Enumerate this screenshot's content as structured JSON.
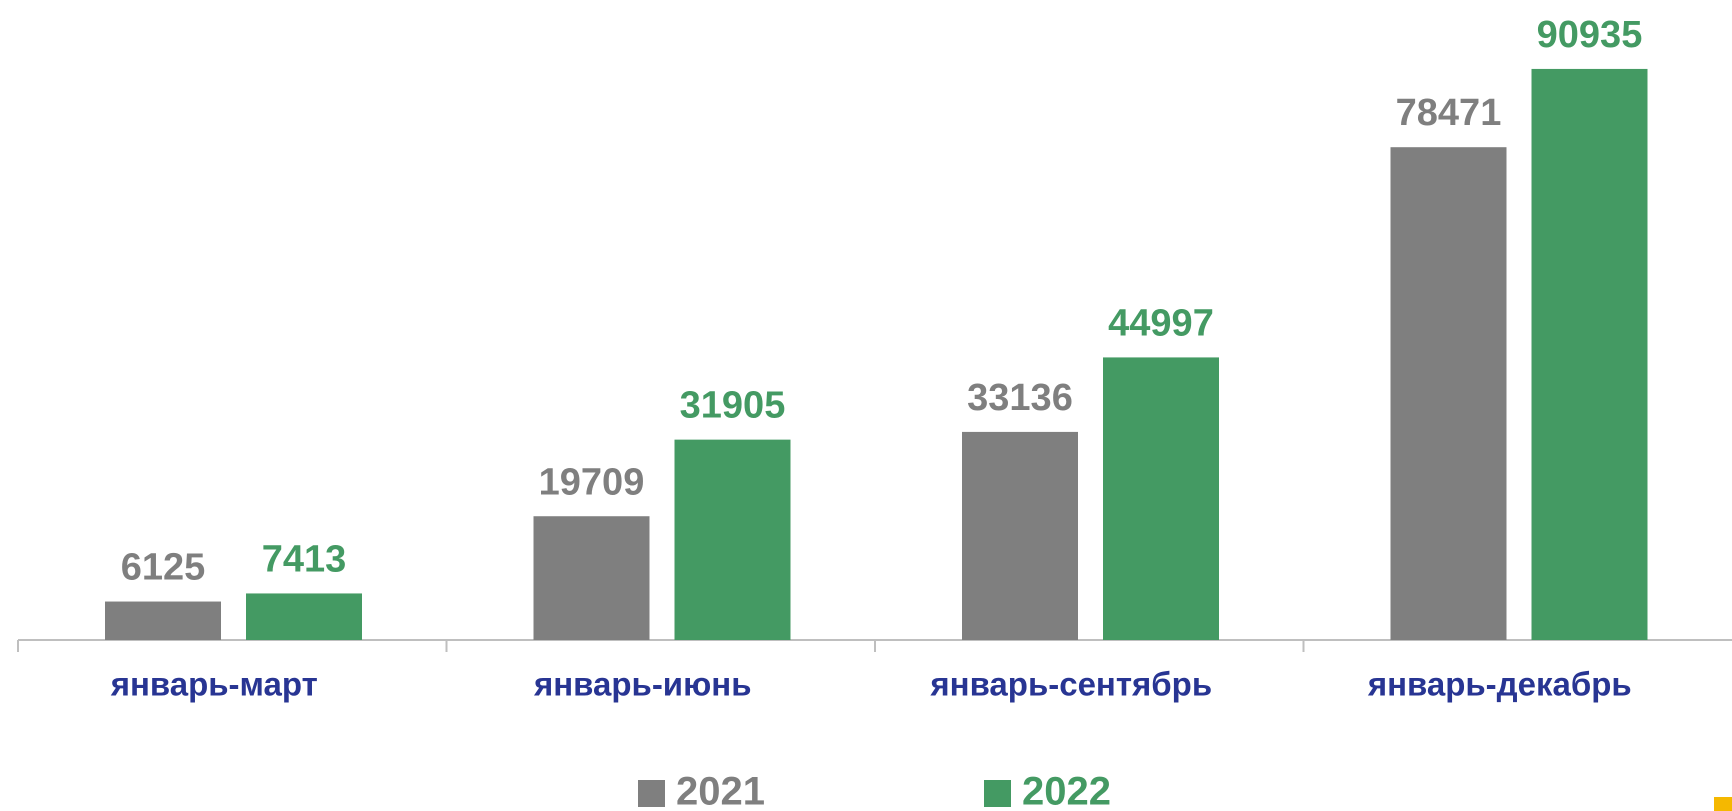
{
  "chart_data": {
    "type": "bar",
    "categories": [
      "январь-март",
      "январь-июнь",
      "январь-сентябрь",
      "январь-декабрь"
    ],
    "series": [
      {
        "name": "2021",
        "color": "#7f7f7f",
        "values": [
          6125,
          19709,
          33136,
          78471
        ]
      },
      {
        "name": "2022",
        "color": "#449a63",
        "values": [
          7413,
          31905,
          44997,
          90935
        ]
      }
    ],
    "ylim": [
      0,
      100000
    ],
    "legend": "bottom"
  }
}
